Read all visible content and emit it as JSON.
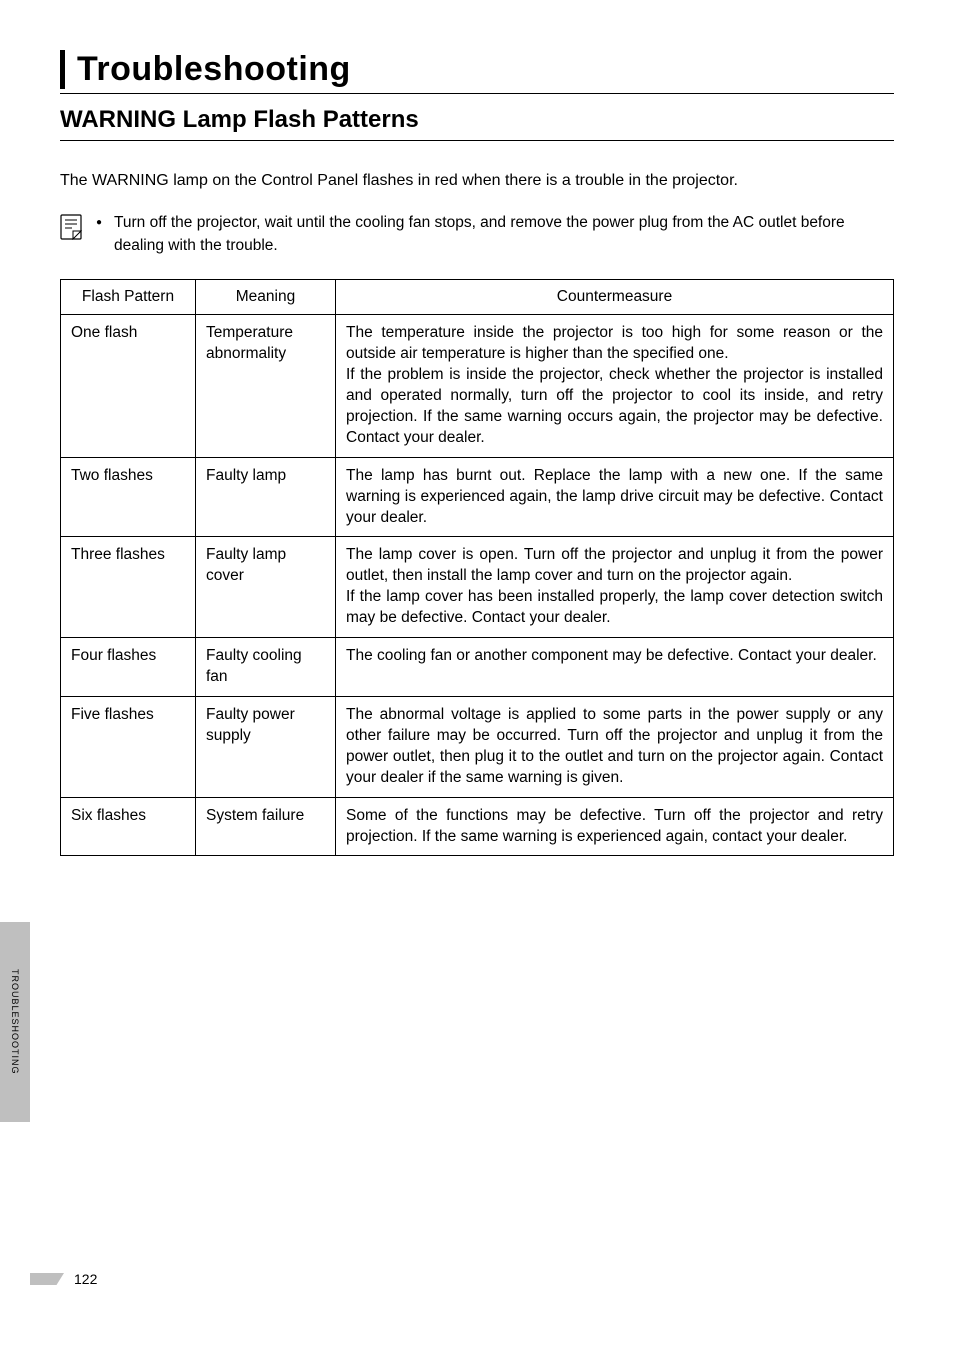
{
  "chapter_title": "Troubleshooting",
  "section_title": "WARNING Lamp Flash Patterns",
  "intro_text": "The WARNING lamp on the Control Panel flashes in red when there is a trouble in the projector.",
  "note_text": "Turn off the projector, wait until the cooling fan stops, and remove the power plug from the AC outlet before dealing with the trouble.",
  "table": {
    "headers": {
      "c0": "Flash Pattern",
      "c1": "Meaning",
      "c2": "Countermeasure"
    },
    "rows": [
      {
        "pattern": "One flash",
        "meaning": "Temperature abnormality",
        "counter": "The temperature inside the projector is too high for some reason or the outside air temperature is higher than the specified one.\nIf the problem is inside the projector, check whether the projector is installed and operated normally, turn off the projector to cool its inside, and retry projection. If the same warning occurs again, the projector may be defective. Contact your dealer."
      },
      {
        "pattern": "Two flashes",
        "meaning": "Faulty lamp",
        "counter": "The lamp has burnt out. Replace the lamp with a new one. If the same warning is experienced again, the lamp drive circuit may be defective. Contact your dealer."
      },
      {
        "pattern": "Three flashes",
        "meaning": "Faulty lamp cover",
        "counter": "The lamp cover is open. Turn off the projector and unplug it from the power outlet, then install the lamp cover and turn on the projector again.\nIf the lamp cover has been installed properly, the lamp cover detection switch may be defective. Contact your dealer."
      },
      {
        "pattern": "Four flashes",
        "meaning": "Faulty cooling fan",
        "counter": "The cooling fan or another component may be defective. Contact your dealer."
      },
      {
        "pattern": "Five flashes",
        "meaning": "Faulty power supply",
        "counter": "The abnormal voltage is applied to some parts in the power supply or any other failure may be occurred. Turn off the projector and unplug it from the power outlet, then plug it to the outlet and turn on the projector again. Contact your dealer if the same warning is given."
      },
      {
        "pattern": "Six flashes",
        "meaning": "System failure",
        "counter": "Some of the functions may be defective. Turn off the projector and retry projection. If the same warning is experienced again, contact your dealer."
      }
    ]
  },
  "side_tab_text": "TROUBLESHOOTING",
  "page_number": "122",
  "colors": {
    "tab_bg": "#bfbfbf",
    "text": "#000000",
    "bg": "#ffffff"
  }
}
